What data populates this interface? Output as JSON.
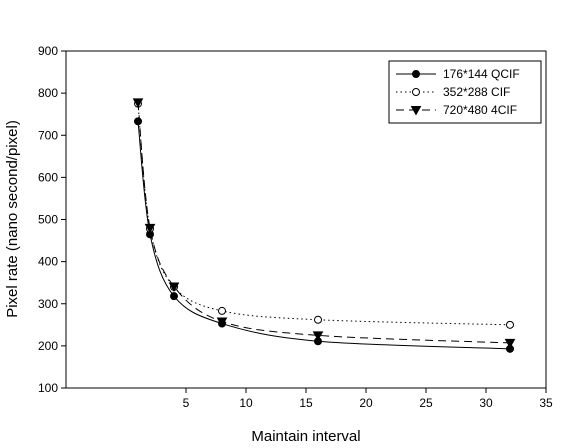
{
  "chart_data": {
    "type": "line",
    "xlabel": "Maintain interval",
    "ylabel": "Pixel rate (nano second/pixel)",
    "xlim": [
      -5,
      35
    ],
    "ylim": [
      100,
      900
    ],
    "xticks": [
      5,
      10,
      15,
      20,
      25,
      30,
      35
    ],
    "yticks": [
      100,
      200,
      300,
      400,
      500,
      600,
      700,
      800,
      900
    ],
    "grid": false,
    "legend_position": "top-right",
    "series": [
      {
        "name": "176*144 QCIF",
        "marker": "filled-circle",
        "line_style": "solid",
        "x": [
          1,
          2,
          4,
          8,
          16,
          32
        ],
        "y": [
          733,
          465,
          318,
          253,
          211,
          193
        ]
      },
      {
        "name": "352*288 CIF",
        "marker": "open-circle",
        "line_style": "dotted",
        "x": [
          1,
          2,
          4,
          8,
          16,
          32
        ],
        "y": [
          775,
          478,
          340,
          283,
          262,
          250
        ]
      },
      {
        "name": "720*480 4CIF",
        "marker": "filled-triangle-down",
        "line_style": "dashed",
        "x": [
          1,
          2,
          4,
          8,
          16,
          32
        ],
        "y": [
          778,
          480,
          341,
          258,
          225,
          207
        ]
      }
    ]
  }
}
